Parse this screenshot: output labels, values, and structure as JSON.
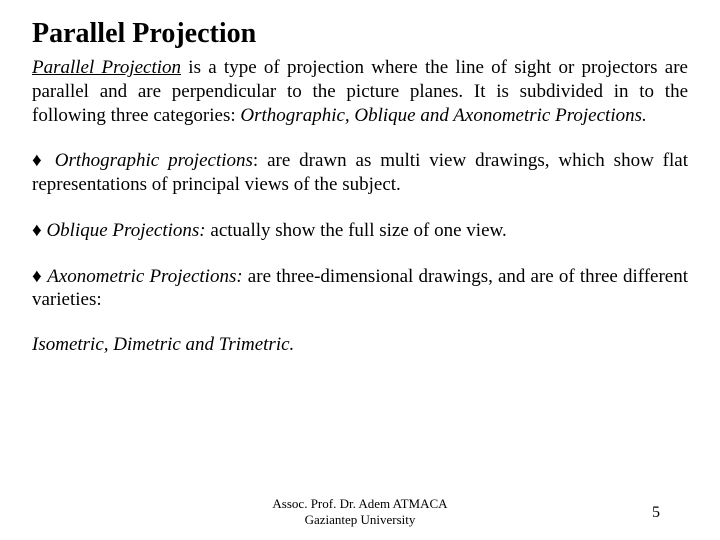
{
  "title": "Parallel Projection",
  "intro_term": "Parallel Projection",
  "intro_rest": " is a type of projection where the line of sight or projectors are parallel and are perpendicular to the picture planes. It is subdivided in to the following three categories: ",
  "intro_italic_tail": "Orthographic, Oblique and Axonometric Projections.",
  "diamond": "♦",
  "b1_label": "Orthographic projections",
  "b1_text": ": are drawn as multi view drawings, which show flat representations of principal views of the subject.",
  "b2_label": "Oblique Projections:",
  "b2_text": " actually show the full size of one view.",
  "b3_label": "Axonometric Projections:",
  "b3_text": " are three-dimensional drawings, and are of three different varieties:",
  "closing": "Isometric, Dimetric and Trimetric.",
  "footer_line1": "Assoc. Prof. Dr. Adem ATMACA",
  "footer_line2": "Gaziantep University",
  "page_number": "5"
}
